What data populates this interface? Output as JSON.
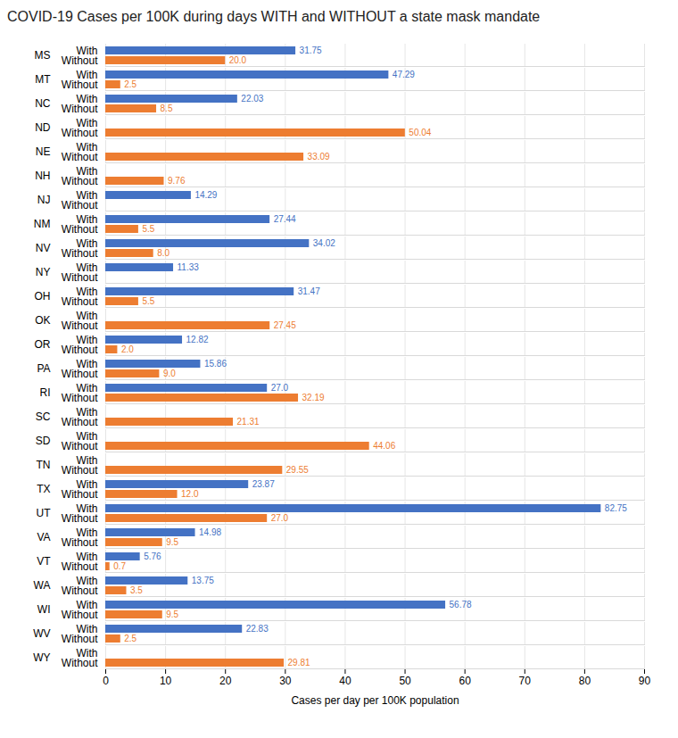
{
  "chart_data": {
    "type": "bar",
    "orientation": "horizontal",
    "title": "COVID-19 Cases per 100K during days WITH and WITHOUT a state mask mandate",
    "xlabel": "Cases per day per 100K population",
    "categories": [
      "MS",
      "MT",
      "NC",
      "ND",
      "NE",
      "NH",
      "NJ",
      "NM",
      "NV",
      "NY",
      "OH",
      "OK",
      "OR",
      "PA",
      "RI",
      "SC",
      "SD",
      "TN",
      "TX",
      "UT",
      "VA",
      "VT",
      "WA",
      "WI",
      "WV",
      "WY"
    ],
    "series": [
      {
        "name": "With",
        "color": "#4472c4",
        "values": [
          31.75,
          47.29,
          22.03,
          0,
          0,
          0,
          14.29,
          27.44,
          34.02,
          11.33,
          31.47,
          0,
          12.82,
          15.86,
          27.0,
          0,
          0,
          0,
          23.87,
          82.75,
          14.98,
          5.76,
          13.75,
          56.78,
          22.83,
          0
        ],
        "value_labels": [
          "31.75",
          "47.29",
          "22.03",
          null,
          null,
          null,
          "14.29",
          "27.44",
          "34.02",
          "11.33",
          "31.47",
          null,
          "12.82",
          "15.86",
          "27.0",
          null,
          null,
          null,
          "23.87",
          "82.75",
          "14.98",
          "5.76",
          "13.75",
          "56.78",
          "22.83",
          null
        ]
      },
      {
        "name": "Without",
        "color": "#ed7d31",
        "values": [
          20.0,
          2.5,
          8.5,
          50.04,
          33.09,
          9.76,
          0,
          5.5,
          8.0,
          0,
          5.5,
          27.45,
          2.0,
          9.0,
          32.19,
          21.31,
          44.06,
          29.55,
          12.0,
          27.0,
          9.5,
          0.7,
          3.5,
          9.5,
          2.5,
          29.81
        ],
        "value_labels": [
          "20.0",
          "2.5",
          "8.5",
          "50.04",
          "33.09",
          "9.76",
          null,
          "5.5",
          "8.0",
          null,
          "5.5",
          "27.45",
          "2.0",
          "9.0",
          "32.19",
          "21.31",
          "44.06",
          "29.55",
          "12.0",
          "27.0",
          "9.5",
          "0.7",
          "3.5",
          "9.5",
          "2.5",
          "29.81"
        ]
      }
    ],
    "xlim": [
      0,
      90
    ],
    "xticks": [
      0,
      10,
      20,
      30,
      40,
      50,
      60,
      70,
      80,
      90
    ],
    "grid": true,
    "data_labels": true
  }
}
